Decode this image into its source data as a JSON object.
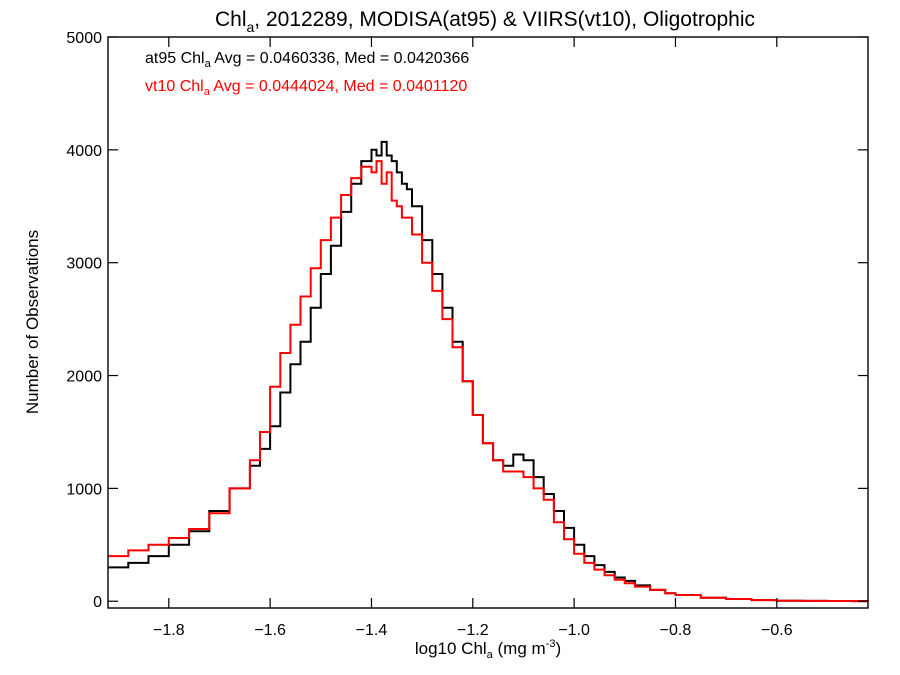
{
  "chart_data": {
    "type": "line",
    "step": true,
    "title": {
      "pre": "Chl",
      "sub": "a",
      "post": ", 2012289, MODISA(at95) & VIIRS(vt10), Oligotrophic"
    },
    "xlabel": {
      "pre": "log10 Chl",
      "sub": "a",
      "mid": " (mg m",
      "sup": "-3",
      "post": ")"
    },
    "ylabel": "Number of Observations",
    "xlim": [
      -1.92,
      -0.42
    ],
    "ylim": [
      -60,
      5000
    ],
    "xticks": [
      -1.8,
      -1.6,
      -1.4,
      -1.2,
      -1.0,
      -0.8,
      -0.6
    ],
    "xtick_labels": [
      "−1.8",
      "−1.6",
      "−1.4",
      "−1.2",
      "−1.0",
      "−0.8",
      "−0.6"
    ],
    "yticks": [
      0,
      1000,
      2000,
      3000,
      4000,
      5000
    ],
    "ytick_labels": [
      "0",
      "1000",
      "2000",
      "3000",
      "4000",
      "5000"
    ],
    "grid": false,
    "annotations": [
      {
        "pre": "at95 Chl",
        "sub": "a",
        "post": " Avg = 0.0460336, Med = 0.0420366",
        "color": "#000000"
      },
      {
        "pre": "vt10 Chl",
        "sub": "a",
        "post": " Avg = 0.0444024, Med = 0.0401120",
        "color": "#ff0000"
      }
    ],
    "series": [
      {
        "color": "#000000",
        "x": [
          -1.92,
          -1.88,
          -1.84,
          -1.8,
          -1.76,
          -1.72,
          -1.68,
          -1.64,
          -1.62,
          -1.6,
          -1.58,
          -1.56,
          -1.54,
          -1.52,
          -1.5,
          -1.48,
          -1.46,
          -1.44,
          -1.42,
          -1.4,
          -1.39,
          -1.38,
          -1.37,
          -1.36,
          -1.35,
          -1.34,
          -1.33,
          -1.32,
          -1.3,
          -1.28,
          -1.26,
          -1.24,
          -1.22,
          -1.2,
          -1.18,
          -1.16,
          -1.14,
          -1.12,
          -1.1,
          -1.08,
          -1.06,
          -1.04,
          -1.02,
          -1.0,
          -0.98,
          -0.96,
          -0.94,
          -0.92,
          -0.9,
          -0.88,
          -0.85,
          -0.82,
          -0.8,
          -0.75,
          -0.7,
          -0.65,
          -0.6,
          -0.55,
          -0.5,
          -0.45,
          -0.42
        ],
        "y": [
          300,
          340,
          400,
          500,
          620,
          800,
          1000,
          1200,
          1350,
          1550,
          1850,
          2100,
          2300,
          2600,
          2900,
          3150,
          3450,
          3700,
          3900,
          4000,
          3950,
          4070,
          3950,
          3900,
          3800,
          3700,
          3650,
          3500,
          3200,
          2900,
          2600,
          2300,
          1950,
          1650,
          1400,
          1250,
          1200,
          1300,
          1250,
          1100,
          950,
          800,
          650,
          500,
          400,
          320,
          260,
          210,
          180,
          140,
          100,
          70,
          55,
          30,
          20,
          10,
          5,
          3,
          2,
          1,
          0
        ]
      },
      {
        "color": "#ff0000",
        "x": [
          -1.92,
          -1.88,
          -1.84,
          -1.8,
          -1.76,
          -1.72,
          -1.68,
          -1.64,
          -1.62,
          -1.6,
          -1.58,
          -1.56,
          -1.54,
          -1.52,
          -1.5,
          -1.48,
          -1.46,
          -1.44,
          -1.42,
          -1.4,
          -1.39,
          -1.38,
          -1.37,
          -1.36,
          -1.35,
          -1.34,
          -1.32,
          -1.3,
          -1.28,
          -1.26,
          -1.24,
          -1.22,
          -1.2,
          -1.18,
          -1.16,
          -1.14,
          -1.12,
          -1.1,
          -1.08,
          -1.06,
          -1.04,
          -1.02,
          -1.0,
          -0.98,
          -0.96,
          -0.94,
          -0.92,
          -0.9,
          -0.88,
          -0.85,
          -0.82,
          -0.8,
          -0.75,
          -0.7,
          -0.65,
          -0.6,
          -0.55,
          -0.5,
          -0.45,
          -0.42
        ],
        "y": [
          400,
          450,
          500,
          560,
          640,
          780,
          1000,
          1250,
          1500,
          1900,
          2200,
          2450,
          2700,
          2950,
          3200,
          3400,
          3600,
          3750,
          3850,
          3800,
          3900,
          3700,
          3800,
          3550,
          3500,
          3400,
          3250,
          3000,
          2750,
          2500,
          2250,
          1950,
          1650,
          1400,
          1250,
          1150,
          1150,
          1100,
          1000,
          900,
          700,
          550,
          420,
          340,
          280,
          230,
          190,
          160,
          130,
          100,
          70,
          55,
          30,
          20,
          10,
          5,
          3,
          2,
          1,
          0
        ]
      }
    ]
  }
}
